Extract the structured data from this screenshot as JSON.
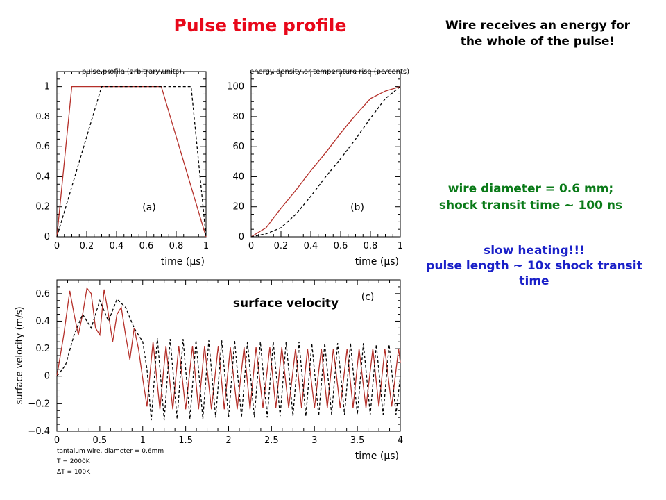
{
  "slide": {
    "title": "Pulse time profile",
    "note_top": [
      "Wire receives an energy for",
      "the whole of the pulse!"
    ],
    "note_wire": [
      "wire diameter = 0.6 mm;",
      "shock transit time ~ 100 ns"
    ],
    "note_slow": [
      "slow heating!!!",
      "pulse length ~ 10x shock transit",
      "time"
    ],
    "overlay_label": "surface velocity"
  },
  "colors": {
    "title": "#e8081a",
    "wire_note": "#0a7a18",
    "slow_note": "#1a20c8",
    "series_solid": "#b5302a",
    "series_dashed": "#000000"
  },
  "chart_data": [
    {
      "id": "a",
      "type": "line",
      "title": "pulse profile (arbitrary units)",
      "xlabel": "time (μs)",
      "ylabel": "",
      "panel_label": "(a)",
      "xlim": [
        0,
        1
      ],
      "ylim": [
        0,
        1.1
      ],
      "xticks": [
        0,
        0.2,
        0.4,
        0.6,
        0.8,
        1
      ],
      "xtick_labels": [
        "0",
        "0.2",
        "0.4",
        "0.6",
        "0.8",
        "1"
      ],
      "yticks": [
        0,
        0.2,
        0.4,
        0.6,
        0.8,
        1
      ],
      "ytick_labels": [
        "0",
        "0.2",
        "0.4",
        "0.6",
        "0.8",
        "1"
      ],
      "series": [
        {
          "style": "solid",
          "x": [
            0,
            0.1,
            0.7,
            1.0
          ],
          "y": [
            0,
            1,
            1,
            0
          ]
        },
        {
          "style": "dashed",
          "x": [
            0,
            0.3,
            0.9,
            1.0
          ],
          "y": [
            0,
            1,
            1,
            0
          ]
        }
      ]
    },
    {
      "id": "b",
      "type": "line",
      "title": "energy density or temperature rise (percents)",
      "xlabel": "time (μs)",
      "ylabel": "",
      "panel_label": "(b)",
      "xlim": [
        0,
        1
      ],
      "ylim": [
        0,
        110
      ],
      "xticks": [
        0,
        0.2,
        0.4,
        0.6,
        0.8,
        1
      ],
      "xtick_labels": [
        "0",
        "0.2",
        "0.4",
        "0.6",
        "0.8",
        "1"
      ],
      "yticks": [
        0,
        20,
        40,
        60,
        80,
        100
      ],
      "ytick_labels": [
        "0",
        "20",
        "40",
        "60",
        "80",
        "100"
      ],
      "series": [
        {
          "style": "solid",
          "x": [
            0,
            0.1,
            0.2,
            0.3,
            0.4,
            0.5,
            0.6,
            0.7,
            0.8,
            0.9,
            1.0
          ],
          "y": [
            0,
            6,
            19,
            31,
            44,
            56,
            69,
            81,
            92,
            97,
            100
          ]
        },
        {
          "style": "dashed",
          "x": [
            0,
            0.1,
            0.2,
            0.3,
            0.4,
            0.5,
            0.6,
            0.7,
            0.8,
            0.9,
            1.0
          ],
          "y": [
            0,
            2,
            6,
            15,
            27,
            40,
            52,
            65,
            79,
            92,
            100
          ]
        }
      ]
    },
    {
      "id": "c",
      "type": "line",
      "title": "",
      "xlabel": "time (μs)",
      "ylabel": "surface velocity (m/s)",
      "panel_label": "(c)",
      "xlim": [
        0,
        4
      ],
      "ylim": [
        -0.4,
        0.7
      ],
      "xticks": [
        0,
        0.5,
        1,
        1.5,
        2,
        2.5,
        3,
        3.5,
        4
      ],
      "xtick_labels": [
        "0",
        "0.5",
        "1",
        "1.5",
        "2",
        "2.5",
        "3",
        "3.5",
        "4"
      ],
      "yticks": [
        -0.4,
        -0.2,
        0,
        0.2,
        0.4,
        0.6
      ],
      "ytick_labels": [
        "−0.4",
        "−0.2",
        "0",
        "0.2",
        "0.4",
        "0.6"
      ],
      "annotation_lines": [
        "tantalum wire, diameter = 0.6mm",
        "T     = 2000K",
        "ΔT  =  100K"
      ],
      "series": [
        {
          "style": "solid",
          "x": [
            0,
            0.08,
            0.15,
            0.2,
            0.25,
            0.3,
            0.35,
            0.4,
            0.45,
            0.5,
            0.55,
            0.6,
            0.65,
            0.7,
            0.75,
            0.8,
            0.85,
            0.9,
            0.95,
            1.0,
            1.05,
            1.1,
            1.12,
            1.2,
            1.27,
            1.35,
            1.42,
            1.5,
            1.58,
            1.65,
            1.72,
            1.8,
            1.88,
            1.95,
            2.02,
            2.1,
            2.18,
            2.25,
            2.32,
            2.4,
            2.48,
            2.55,
            2.62,
            2.7,
            2.78,
            2.85,
            2.92,
            3.0,
            3.08,
            3.15,
            3.22,
            3.3,
            3.38,
            3.45,
            3.52,
            3.6,
            3.68,
            3.75,
            3.82,
            3.9,
            3.98,
            4.0
          ],
          "y": [
            0,
            0.3,
            0.62,
            0.45,
            0.3,
            0.45,
            0.64,
            0.6,
            0.35,
            0.3,
            0.63,
            0.45,
            0.25,
            0.45,
            0.5,
            0.3,
            0.12,
            0.35,
            0.2,
            -0.02,
            -0.22,
            0.12,
            0.25,
            -0.24,
            0.22,
            -0.24,
            0.22,
            -0.24,
            0.22,
            -0.24,
            0.22,
            -0.24,
            0.22,
            -0.24,
            0.21,
            -0.24,
            0.21,
            -0.24,
            0.21,
            -0.23,
            0.21,
            -0.23,
            0.21,
            -0.23,
            0.2,
            -0.23,
            0.2,
            -0.23,
            0.2,
            -0.23,
            0.2,
            -0.23,
            0.2,
            -0.23,
            0.2,
            -0.23,
            0.2,
            -0.22,
            0.2,
            -0.22,
            0.2,
            0.1
          ]
        },
        {
          "style": "dashed",
          "x": [
            0,
            0.1,
            0.2,
            0.3,
            0.4,
            0.5,
            0.6,
            0.7,
            0.8,
            0.9,
            1.0,
            1.05,
            1.1,
            1.17,
            1.25,
            1.32,
            1.4,
            1.47,
            1.55,
            1.62,
            1.7,
            1.77,
            1.85,
            1.92,
            2.0,
            2.07,
            2.15,
            2.22,
            2.3,
            2.37,
            2.45,
            2.52,
            2.6,
            2.67,
            2.75,
            2.82,
            2.9,
            2.97,
            3.05,
            3.12,
            3.2,
            3.27,
            3.35,
            3.42,
            3.5,
            3.57,
            3.65,
            3.72,
            3.8,
            3.87,
            3.95,
            4.0
          ],
          "y": [
            0,
            0.08,
            0.3,
            0.45,
            0.35,
            0.55,
            0.4,
            0.56,
            0.5,
            0.35,
            0.25,
            0.05,
            -0.32,
            0.28,
            -0.32,
            0.27,
            -0.31,
            0.27,
            -0.31,
            0.26,
            -0.31,
            0.26,
            -0.3,
            0.26,
            -0.3,
            0.26,
            -0.3,
            0.25,
            -0.3,
            0.25,
            -0.3,
            0.25,
            -0.29,
            0.25,
            -0.29,
            0.25,
            -0.29,
            0.24,
            -0.29,
            0.24,
            -0.28,
            0.24,
            -0.28,
            0.24,
            -0.28,
            0.24,
            -0.28,
            0.23,
            -0.28,
            0.23,
            -0.28,
            0.0
          ]
        }
      ]
    }
  ]
}
